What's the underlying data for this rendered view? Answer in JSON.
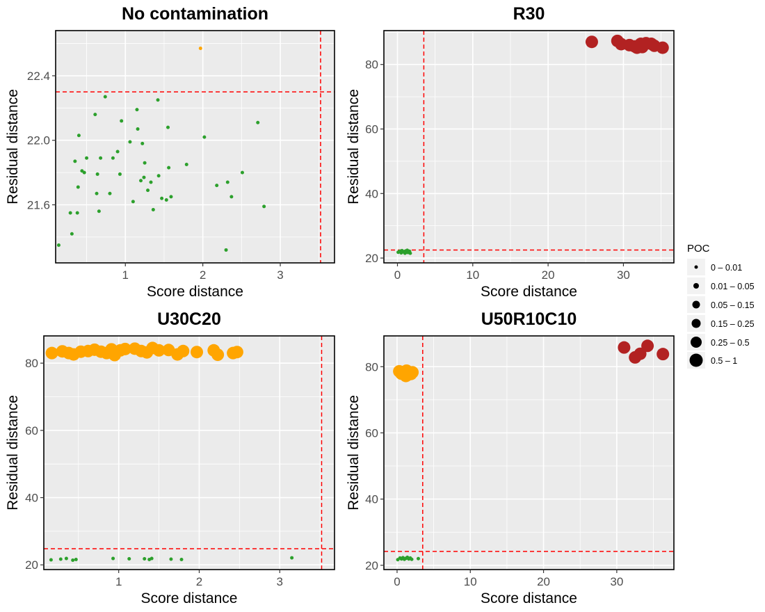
{
  "chart_data": [
    {
      "type": "scatter",
      "title": "No contamination",
      "xlabel": "Score distance",
      "ylabel": "Residual distance",
      "xlim": [
        0.1,
        3.7
      ],
      "ylim": [
        21.24,
        22.68
      ],
      "xticks": [
        1,
        2,
        3
      ],
      "yticks": [
        21.6,
        22.0,
        22.4
      ],
      "ytick_labels": [
        "21.6",
        "22.0",
        "22.4"
      ],
      "cutoff_x": 3.52,
      "cutoff_y": 22.3,
      "series": [
        {
          "name": "regular",
          "color": "#2ca02c",
          "size_class": 0,
          "points": [
            [
              0.14,
              21.35
            ],
            [
              0.29,
              21.55
            ],
            [
              0.31,
              21.42
            ],
            [
              0.35,
              21.87
            ],
            [
              0.38,
              21.55
            ],
            [
              0.39,
              21.71
            ],
            [
              0.4,
              22.03
            ],
            [
              0.44,
              21.81
            ],
            [
              0.47,
              21.8
            ],
            [
              0.5,
              21.89
            ],
            [
              0.61,
              22.16
            ],
            [
              0.63,
              21.67
            ],
            [
              0.64,
              21.79
            ],
            [
              0.66,
              21.56
            ],
            [
              0.68,
              21.89
            ],
            [
              0.74,
              22.27
            ],
            [
              0.8,
              21.67
            ],
            [
              0.84,
              21.89
            ],
            [
              0.9,
              21.93
            ],
            [
              0.93,
              21.79
            ],
            [
              0.95,
              22.12
            ],
            [
              1.06,
              21.99
            ],
            [
              1.1,
              21.62
            ],
            [
              1.15,
              22.19
            ],
            [
              1.16,
              22.07
            ],
            [
              1.2,
              21.75
            ],
            [
              1.22,
              21.98
            ],
            [
              1.24,
              21.77
            ],
            [
              1.25,
              21.86
            ],
            [
              1.29,
              21.69
            ],
            [
              1.33,
              21.74
            ],
            [
              1.36,
              21.57
            ],
            [
              1.42,
              22.25
            ],
            [
              1.43,
              21.78
            ],
            [
              1.47,
              21.64
            ],
            [
              1.53,
              21.63
            ],
            [
              1.55,
              22.08
            ],
            [
              1.56,
              21.83
            ],
            [
              1.59,
              21.65
            ],
            [
              1.79,
              21.85
            ],
            [
              2.02,
              22.02
            ],
            [
              2.18,
              21.72
            ],
            [
              2.3,
              21.32
            ],
            [
              2.32,
              21.74
            ],
            [
              2.37,
              21.65
            ],
            [
              2.51,
              21.8
            ],
            [
              2.71,
              22.11
            ],
            [
              2.79,
              21.59
            ]
          ]
        },
        {
          "name": "orthogonal",
          "color": "#ffa500",
          "size_class": 0,
          "points": [
            [
              1.97,
              22.57
            ]
          ]
        }
      ]
    },
    {
      "type": "scatter",
      "title": "R30",
      "xlabel": "Score distance",
      "ylabel": "Residual distance",
      "xlim": [
        -1.8,
        36.7
      ],
      "ylim": [
        18.5,
        90.5
      ],
      "xticks": [
        0,
        10,
        20,
        30
      ],
      "yticks": [
        20,
        40,
        60,
        80
      ],
      "ytick_labels": [
        "20",
        "40",
        "60",
        "80"
      ],
      "cutoff_x": 3.5,
      "cutoff_y": 22.5,
      "series": [
        {
          "name": "regular",
          "color": "#2ca02c",
          "size_class": 0,
          "points": [
            [
              0.1,
              21.8
            ],
            [
              0.3,
              22.1
            ],
            [
              0.5,
              21.6
            ],
            [
              0.6,
              22.3
            ],
            [
              0.8,
              21.9
            ],
            [
              0.9,
              22.0
            ],
            [
              1.0,
              21.5
            ],
            [
              1.1,
              22.2
            ],
            [
              1.2,
              21.8
            ],
            [
              1.3,
              22.4
            ],
            [
              1.4,
              21.7
            ],
            [
              1.6,
              22.1
            ],
            [
              1.7,
              21.5
            ]
          ]
        },
        {
          "name": "outlier",
          "color": "#b22222",
          "size_class": 5,
          "points": [
            [
              25.8,
              87.0
            ],
            [
              29.2,
              87.3
            ],
            [
              29.7,
              86.3
            ],
            [
              30.8,
              86.0
            ],
            [
              31.5,
              85.6
            ],
            [
              31.8,
              85.2
            ],
            [
              32.3,
              86.4
            ],
            [
              32.5,
              85.4
            ],
            [
              33.0,
              86.6
            ],
            [
              33.7,
              86.4
            ],
            [
              34.1,
              85.8
            ],
            [
              35.2,
              85.2
            ]
          ]
        }
      ]
    },
    {
      "type": "scatter",
      "title": "U30C20",
      "xlabel": "Score distance",
      "ylabel": "Residual distance",
      "xlim": [
        0.07,
        3.68
      ],
      "ylim": [
        18.6,
        88.1
      ],
      "xticks": [
        1,
        2,
        3
      ],
      "yticks": [
        20,
        40,
        60,
        80
      ],
      "ytick_labels": [
        "20",
        "40",
        "60",
        "80"
      ],
      "cutoff_x": 3.52,
      "cutoff_y": 24.8,
      "series": [
        {
          "name": "regular",
          "color": "#2ca02c",
          "size_class": 0,
          "points": [
            [
              0.16,
              21.5
            ],
            [
              0.28,
              21.7
            ],
            [
              0.35,
              21.9
            ],
            [
              0.43,
              21.4
            ],
            [
              0.47,
              21.6
            ],
            [
              0.93,
              21.9
            ],
            [
              1.13,
              21.8
            ],
            [
              1.32,
              21.8
            ],
            [
              1.38,
              21.6
            ],
            [
              1.41,
              21.9
            ],
            [
              1.65,
              21.7
            ],
            [
              1.78,
              21.6
            ],
            [
              3.15,
              22.1
            ]
          ]
        },
        {
          "name": "orthogonal",
          "color": "#ffa500",
          "size_class": 5,
          "points": [
            [
              0.17,
              83.0
            ],
            [
              0.3,
              83.5
            ],
            [
              0.38,
              83.0
            ],
            [
              0.44,
              82.6
            ],
            [
              0.53,
              83.4
            ],
            [
              0.62,
              83.6
            ],
            [
              0.7,
              84.0
            ],
            [
              0.78,
              83.4
            ],
            [
              0.85,
              83.0
            ],
            [
              0.91,
              84.1
            ],
            [
              0.95,
              82.4
            ],
            [
              1.02,
              83.8
            ],
            [
              1.08,
              84.2
            ],
            [
              1.2,
              84.3
            ],
            [
              1.28,
              83.6
            ],
            [
              1.35,
              83.2
            ],
            [
              1.42,
              84.5
            ],
            [
              1.5,
              83.8
            ],
            [
              1.62,
              83.9
            ],
            [
              1.73,
              82.6
            ],
            [
              1.8,
              83.6
            ],
            [
              1.97,
              83.3
            ],
            [
              2.18,
              83.8
            ],
            [
              2.23,
              82.5
            ],
            [
              2.42,
              83.0
            ],
            [
              2.47,
              83.3
            ]
          ]
        }
      ]
    },
    {
      "type": "scatter",
      "title": "U50R10C10",
      "xlabel": "Score distance",
      "ylabel": "Residual distance",
      "xlim": [
        -1.8,
        37.8
      ],
      "ylim": [
        18.7,
        89.3
      ],
      "xticks": [
        0,
        10,
        20,
        30
      ],
      "yticks": [
        20,
        40,
        60,
        80
      ],
      "ytick_labels": [
        "20",
        "40",
        "60",
        "80"
      ],
      "cutoff_x": 3.5,
      "cutoff_y": 24.2,
      "series": [
        {
          "name": "regular",
          "color": "#2ca02c",
          "size_class": 0,
          "points": [
            [
              0.1,
              21.7
            ],
            [
              0.4,
              22.2
            ],
            [
              0.6,
              21.9
            ],
            [
              0.8,
              22.3
            ],
            [
              1.0,
              21.8
            ],
            [
              1.2,
              22.1
            ],
            [
              1.4,
              22.4
            ],
            [
              1.6,
              21.9
            ],
            [
              1.8,
              22.2
            ],
            [
              2.0,
              21.8
            ],
            [
              2.9,
              22.0
            ]
          ]
        },
        {
          "name": "orthogonal",
          "color": "#ffa500",
          "size_class": 5,
          "points": [
            [
              0.3,
              78.6
            ],
            [
              0.6,
              77.9
            ],
            [
              0.9,
              78.4
            ],
            [
              1.1,
              77.5
            ],
            [
              1.3,
              78.8
            ],
            [
              1.5,
              77.6
            ],
            [
              1.7,
              78.2
            ],
            [
              1.9,
              77.8
            ],
            [
              2.1,
              78.3
            ],
            [
              1.2,
              77.2
            ]
          ]
        },
        {
          "name": "outlier",
          "color": "#b22222",
          "size_class": 5,
          "points": [
            [
              31.0,
              85.8
            ],
            [
              32.5,
              82.8
            ],
            [
              33.2,
              83.9
            ],
            [
              34.2,
              86.3
            ],
            [
              36.3,
              83.8
            ]
          ]
        }
      ]
    }
  ],
  "legend": {
    "title": "POC",
    "placement": "right",
    "entries": [
      "0 – 0.01",
      "0.01 – 0.05",
      "0.05 – 0.15",
      "0.15 – 0.25",
      "0.25 – 0.5",
      "0.5 – 1"
    ]
  },
  "colors": {
    "panel_background": "#ebebeb",
    "grid": "#ffffff",
    "cutoff_line": "#ff0000",
    "regular": "#2ca02c",
    "orthogonal": "#ffa500",
    "outlier": "#b22222"
  }
}
